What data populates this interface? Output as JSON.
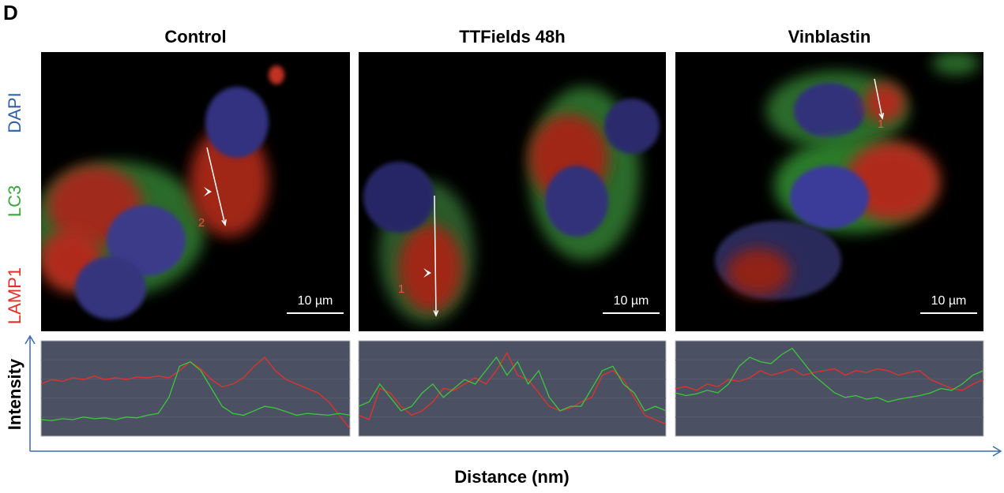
{
  "panel_label": "D",
  "channels": [
    {
      "name": "LAMP1",
      "color": "#e0302a"
    },
    {
      "name": "LC3",
      "color": "#3aa63a"
    },
    {
      "name": "DAPI",
      "color": "#2f5fa8"
    }
  ],
  "conditions": [
    {
      "title": "Control",
      "scale_bar": "10 µm",
      "line_label": "2",
      "profile": [
        {
          "color": "#e8302a",
          "values": [
            55,
            60,
            58,
            62,
            60,
            64,
            60,
            62,
            60,
            63,
            62,
            64,
            62,
            70,
            80,
            72,
            60,
            52,
            55,
            62,
            75,
            85,
            70,
            60,
            55,
            50,
            45,
            35,
            20,
            5
          ]
        },
        {
          "color": "#3cc83c",
          "values": [
            15,
            14,
            16,
            15,
            18,
            16,
            17,
            15,
            18,
            17,
            20,
            22,
            40,
            75,
            80,
            70,
            50,
            30,
            22,
            20,
            25,
            30,
            28,
            24,
            20,
            22,
            21,
            20,
            22,
            20
          ]
        }
      ]
    },
    {
      "title": "TTFields 48h",
      "scale_bar": "10 µm",
      "line_label": "1",
      "profile": [
        {
          "color": "#e8302a",
          "values": [
            20,
            15,
            50,
            45,
            30,
            20,
            25,
            35,
            50,
            48,
            55,
            62,
            55,
            70,
            90,
            65,
            60,
            45,
            30,
            25,
            28,
            35,
            40,
            65,
            70,
            60,
            40,
            20,
            15,
            10
          ]
        },
        {
          "color": "#3cc83c",
          "values": [
            30,
            35,
            55,
            40,
            25,
            30,
            45,
            55,
            40,
            50,
            60,
            55,
            70,
            85,
            65,
            80,
            55,
            70,
            40,
            25,
            30,
            30,
            50,
            70,
            75,
            55,
            45,
            25,
            30,
            25
          ]
        }
      ]
    },
    {
      "title": "Vinblastin",
      "scale_bar": "10 µm",
      "line_label": "1",
      "profile": [
        {
          "color": "#e8302a",
          "values": [
            50,
            52,
            48,
            55,
            52,
            60,
            58,
            62,
            70,
            65,
            68,
            72,
            65,
            68,
            70,
            72,
            65,
            70,
            68,
            72,
            70,
            65,
            68,
            70,
            60,
            55,
            50,
            48,
            55,
            60
          ]
        },
        {
          "color": "#3cc83c",
          "values": [
            45,
            42,
            44,
            48,
            45,
            55,
            75,
            85,
            80,
            78,
            88,
            95,
            80,
            65,
            55,
            45,
            40,
            42,
            38,
            40,
            35,
            38,
            40,
            42,
            45,
            50,
            48,
            55,
            65,
            70
          ]
        }
      ]
    }
  ],
  "axes": {
    "y_label": "Intensity",
    "x_label": "Distance (nm)"
  }
}
